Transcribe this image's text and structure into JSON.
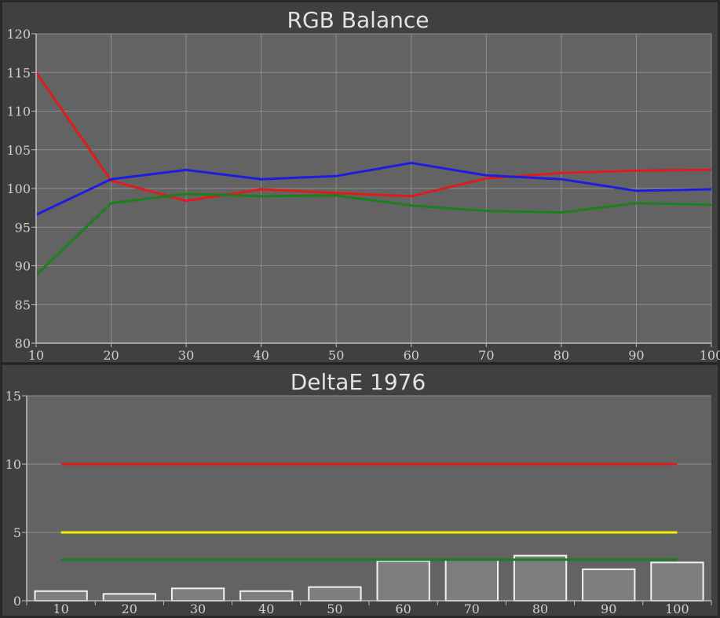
{
  "chart_data": [
    {
      "type": "line",
      "title": "RGB Balance",
      "x": [
        10,
        20,
        30,
        40,
        50,
        60,
        70,
        80,
        90,
        100
      ],
      "xlim": [
        10,
        100
      ],
      "ylim": [
        80,
        120
      ],
      "yticks": [
        80,
        85,
        90,
        95,
        100,
        105,
        110,
        115,
        120
      ],
      "grid": true,
      "series": [
        {
          "color": "#e01b1b",
          "values": [
            115.0,
            101.0,
            98.4,
            99.9,
            99.4,
            99.0,
            101.3,
            102.0,
            102.3,
            102.4
          ]
        },
        {
          "color": "#1a801a",
          "values": [
            88.8,
            98.1,
            99.3,
            99.0,
            99.1,
            97.8,
            97.1,
            96.9,
            98.1,
            97.9
          ]
        },
        {
          "color": "#1d1de0",
          "values": [
            96.6,
            101.2,
            102.4,
            101.2,
            101.6,
            103.3,
            101.7,
            101.2,
            99.7,
            99.9
          ]
        }
      ]
    },
    {
      "type": "bar",
      "title": "DeltaE 1976",
      "categories": [
        "10",
        "20",
        "30",
        "40",
        "50",
        "60",
        "70",
        "80",
        "90",
        "100"
      ],
      "values": [
        0.7,
        0.5,
        0.9,
        0.7,
        1.0,
        2.9,
        3.0,
        3.3,
        2.3,
        2.8
      ],
      "ylim": [
        0,
        15
      ],
      "yticks": [
        0,
        5,
        10,
        15
      ],
      "reference_lines": [
        {
          "value": 10,
          "color": "#e01b1b"
        },
        {
          "value": 5,
          "color": "#f0f000"
        },
        {
          "value": 3,
          "color": "#1a801a"
        }
      ]
    }
  ]
}
